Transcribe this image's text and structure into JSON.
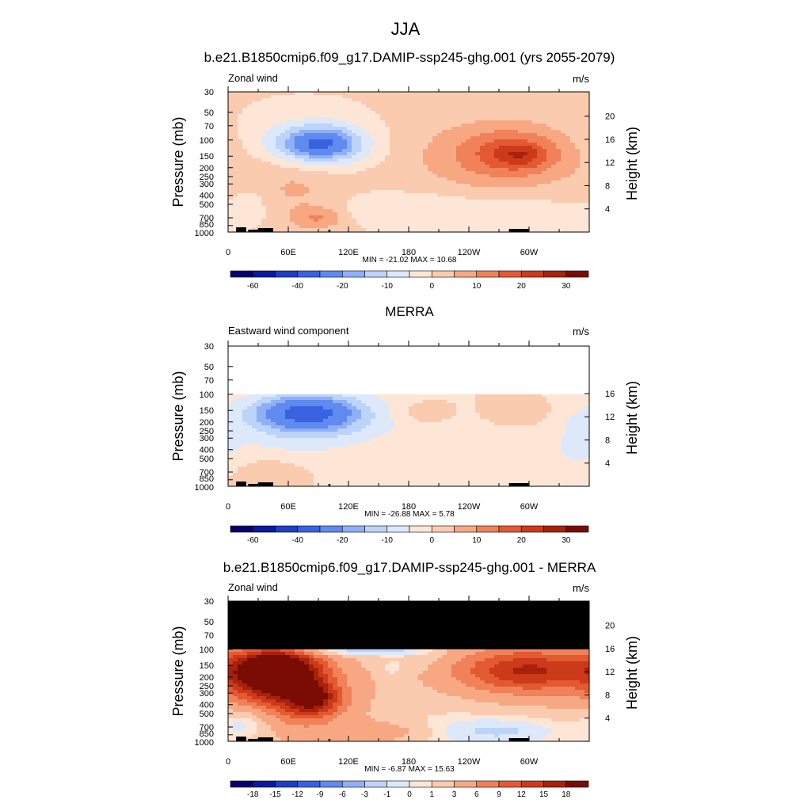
{
  "figure": {
    "title": "JJA",
    "left_axis_label": "Pressure (mb)",
    "right_axis_label": "Height (km)",
    "units": "m/s"
  },
  "chart_data": [
    {
      "type": "heatmap",
      "title": "b.e21.B1850cmip6.f09_g17.DAMIP-ssp245-ghg.001 (yrs 2055-2079)",
      "subtitle": "Zonal wind",
      "units": "m/s",
      "ylabel": "Pressure (mb)",
      "y2label": "Height (km)",
      "x_ticks": [
        "0",
        "60E",
        "120E",
        "180",
        "120W",
        "60W"
      ],
      "x_tick_values": [
        0,
        60,
        120,
        180,
        240,
        300
      ],
      "xlim": [
        0,
        360
      ],
      "y_ticks": [
        "30",
        "50",
        "70",
        "100",
        "150",
        "200",
        "250",
        "300",
        "400",
        "500",
        "700",
        "850",
        "1000"
      ],
      "y_tick_values": [
        30,
        50,
        70,
        100,
        150,
        200,
        250,
        300,
        400,
        500,
        700,
        850,
        1000
      ],
      "ylim": [
        1000,
        30
      ],
      "y_scale": "log",
      "y2_ticks": [
        "4",
        "8",
        "12",
        "16",
        "20"
      ],
      "y2_tick_values": [
        4,
        8,
        12,
        16,
        20
      ],
      "min_max_text": "MIN = -21.02  MAX =  10.68",
      "colorbar_labels": [
        "-60",
        "-40",
        "-20",
        "-10",
        "0",
        "10",
        "20",
        "30"
      ],
      "colorbar_colors": [
        "#08006e",
        "#0a1aa0",
        "#1f3dc8",
        "#3a62e0",
        "#5f8af0",
        "#8fb0f8",
        "#bcd3fa",
        "#dde9fb",
        "#fde6d6",
        "#fbcbb0",
        "#f7a883",
        "#f08158",
        "#e35a32",
        "#cc3a19",
        "#a7220c",
        "#7a0c04"
      ],
      "missing_top_mb": null,
      "features": [
        {
          "label": "easterly core",
          "lon": 92,
          "p": 110,
          "value": -21.02
        },
        {
          "label": "westerly core",
          "lon": 292,
          "p": 145,
          "value": 10.68
        }
      ]
    },
    {
      "type": "heatmap",
      "title": "MERRA",
      "subtitle": "Eastward wind component",
      "units": "m/s",
      "ylabel": "Pressure (mb)",
      "y2label": "Height (km)",
      "x_ticks": [
        "0",
        "60E",
        "120E",
        "180",
        "120W",
        "60W"
      ],
      "x_tick_values": [
        0,
        60,
        120,
        180,
        240,
        300
      ],
      "xlim": [
        0,
        360
      ],
      "y_ticks": [
        "30",
        "50",
        "70",
        "100",
        "150",
        "200",
        "250",
        "300",
        "400",
        "500",
        "700",
        "850",
        "1000"
      ],
      "y_tick_values": [
        30,
        50,
        70,
        100,
        150,
        200,
        250,
        300,
        400,
        500,
        700,
        850,
        1000
      ],
      "ylim": [
        1000,
        30
      ],
      "y_scale": "log",
      "y2_ticks": [
        "4",
        "8",
        "12",
        "16"
      ],
      "y2_tick_values": [
        4,
        8,
        12,
        16
      ],
      "min_max_text": "MIN = -26.88  MAX =   5.78",
      "colorbar_labels": [
        "-60",
        "-40",
        "-20",
        "-10",
        "0",
        "10",
        "20",
        "30"
      ],
      "colorbar_colors": [
        "#08006e",
        "#0a1aa0",
        "#1f3dc8",
        "#3a62e0",
        "#5f8af0",
        "#8fb0f8",
        "#bcd3fa",
        "#dde9fb",
        "#fde6d6",
        "#fbcbb0",
        "#f7a883",
        "#f08158",
        "#e35a32",
        "#cc3a19",
        "#a7220c",
        "#7a0c04"
      ],
      "missing_top_mb": 100,
      "features": [
        {
          "label": "easterly core",
          "lon": 78,
          "p": 160,
          "value": -26.88
        },
        {
          "label": "westerly region",
          "lon": 200,
          "p": 160,
          "value": 5.78
        }
      ]
    },
    {
      "type": "heatmap",
      "title": "b.e21.B1850cmip6.f09_g17.DAMIP-ssp245-ghg.001 - MERRA",
      "subtitle": "Zonal wind",
      "units": "m/s",
      "ylabel": "Pressure (mb)",
      "y2label": "Height (km)",
      "x_ticks": [
        "0",
        "60E",
        "120E",
        "180",
        "120W",
        "60W"
      ],
      "x_tick_values": [
        0,
        60,
        120,
        180,
        240,
        300
      ],
      "xlim": [
        0,
        360
      ],
      "y_ticks": [
        "30",
        "50",
        "70",
        "100",
        "150",
        "200",
        "250",
        "300",
        "400",
        "500",
        "700",
        "850",
        "1000"
      ],
      "y_tick_values": [
        30,
        50,
        70,
        100,
        150,
        200,
        250,
        300,
        400,
        500,
        700,
        850,
        1000
      ],
      "ylim": [
        1000,
        30
      ],
      "y_scale": "log",
      "y2_ticks": [
        "4",
        "8",
        "12",
        "16",
        "20"
      ],
      "y2_tick_values": [
        4,
        8,
        12,
        16,
        20
      ],
      "min_max_text": "MIN = -6.87  MAX =  15.63",
      "colorbar_labels": [
        "-18",
        "-15",
        "-12",
        "-9",
        "-6",
        "-3",
        "-1",
        "0",
        "1",
        "3",
        "6",
        "9",
        "12",
        "15",
        "18"
      ],
      "colorbar_colors": [
        "#08006e",
        "#0a1aa0",
        "#1f3dc8",
        "#3a62e0",
        "#5f8af0",
        "#8fb0f8",
        "#bcd3fa",
        "#dde9fb",
        "#fde6d6",
        "#fbcbb0",
        "#f7a883",
        "#f08158",
        "#e35a32",
        "#cc3a19",
        "#a7220c",
        "#7a0c04"
      ],
      "missing_top_mb": 100,
      "features": [
        {
          "label": "positive core",
          "lon": 45,
          "p": 160,
          "value": 15.63
        },
        {
          "label": "negative region",
          "lon": 100,
          "p": 105,
          "value": -6.87
        }
      ]
    }
  ]
}
